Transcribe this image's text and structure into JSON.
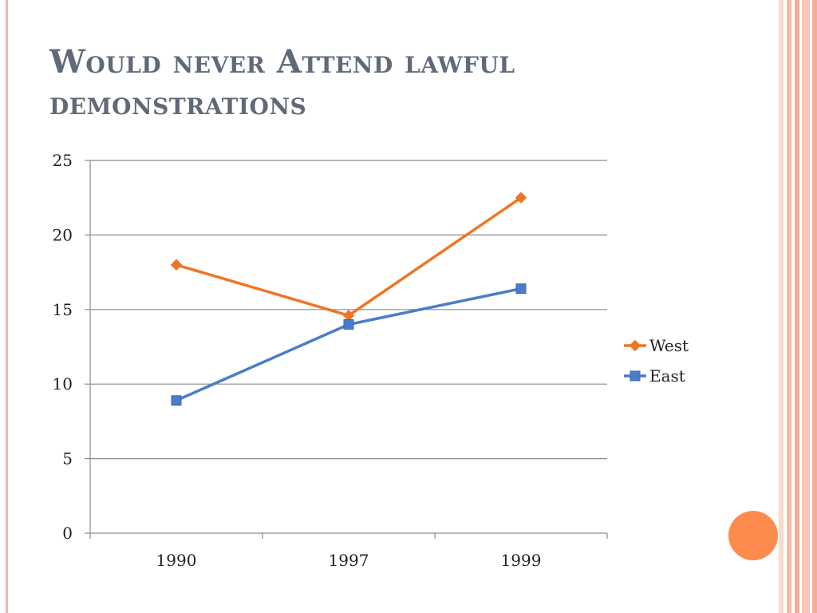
{
  "slide": {
    "title": "Would never Attend lawful demonstrations"
  },
  "colors": {
    "accent": "#fd8b4d",
    "stripe": "#f4b4a4",
    "title": "#5f6a79"
  },
  "chart_data": {
    "type": "line",
    "categories": [
      "1990",
      "1997",
      "1999"
    ],
    "ylim": [
      0,
      25
    ],
    "yticks": [
      0,
      5,
      10,
      15,
      20,
      25
    ],
    "grid": true,
    "legend_position": "right",
    "series": [
      {
        "name": "West",
        "values": [
          18,
          14.6,
          22.5
        ],
        "color": "#ef7524",
        "marker": "diamond"
      },
      {
        "name": "East",
        "values": [
          8.9,
          14,
          16.4
        ],
        "color": "#4a7cc9",
        "marker": "square"
      }
    ]
  }
}
